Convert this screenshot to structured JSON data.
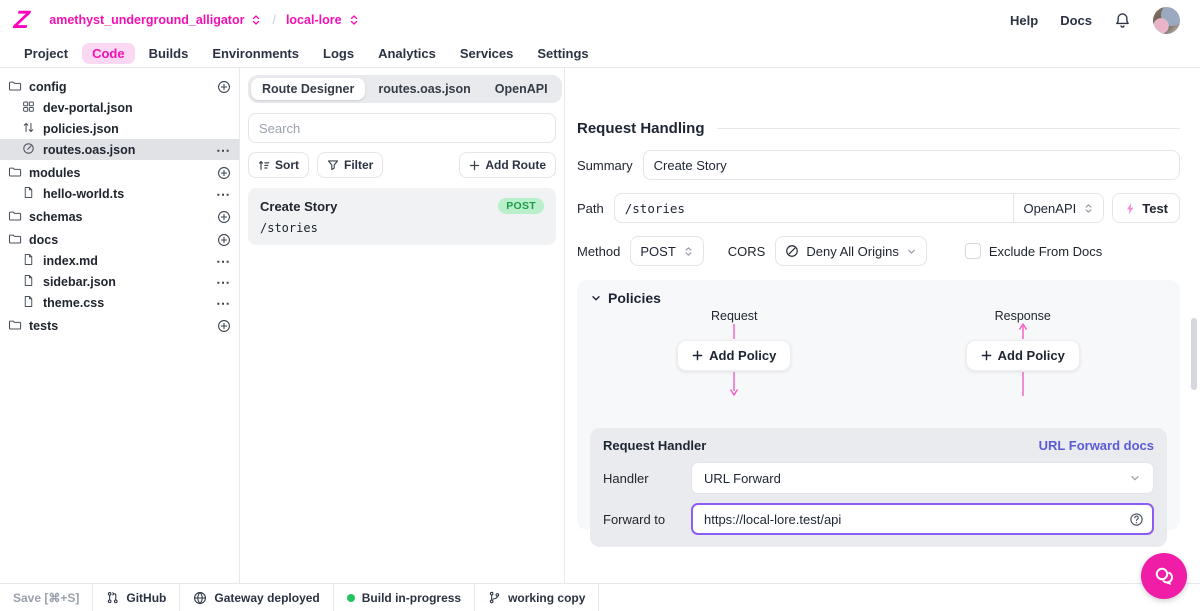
{
  "header": {
    "logo_text": "Z",
    "project_name": "amethyst_underground_alligator",
    "separator": "/",
    "environment_name": "local-lore",
    "help_label": "Help",
    "docs_label": "Docs"
  },
  "nav": {
    "tabs": [
      {
        "label": "Project",
        "active": false
      },
      {
        "label": "Code",
        "active": true
      },
      {
        "label": "Builds",
        "active": false
      },
      {
        "label": "Environments",
        "active": false
      },
      {
        "label": "Logs",
        "active": false
      },
      {
        "label": "Analytics",
        "active": false
      },
      {
        "label": "Services",
        "active": false
      },
      {
        "label": "Settings",
        "active": false
      }
    ]
  },
  "file_tree": {
    "items": [
      {
        "label": "config",
        "icon": "folder-icon",
        "depth": 0,
        "action": "plus",
        "selected": false
      },
      {
        "label": "dev-portal.json",
        "icon": "layout-grid-icon",
        "depth": 1,
        "action": "none",
        "selected": false
      },
      {
        "label": "policies.json",
        "icon": "sort-arrows-icon",
        "depth": 1,
        "action": "none",
        "selected": false
      },
      {
        "label": "routes.oas.json",
        "icon": "route-icon",
        "depth": 1,
        "action": "ellipsis",
        "selected": true
      },
      {
        "label": "modules",
        "icon": "folder-icon",
        "depth": 0,
        "action": "plus",
        "selected": false
      },
      {
        "label": "hello-world.ts",
        "icon": "file-icon",
        "depth": 1,
        "action": "ellipsis",
        "selected": false
      },
      {
        "label": "schemas",
        "icon": "folder-icon",
        "depth": 0,
        "action": "plus",
        "selected": false
      },
      {
        "label": "docs",
        "icon": "folder-icon",
        "depth": 0,
        "action": "plus",
        "selected": false
      },
      {
        "label": "index.md",
        "icon": "file-icon",
        "depth": 1,
        "action": "ellipsis",
        "selected": false
      },
      {
        "label": "sidebar.json",
        "icon": "file-icon",
        "depth": 1,
        "action": "ellipsis",
        "selected": false
      },
      {
        "label": "theme.css",
        "icon": "file-icon",
        "depth": 1,
        "action": "ellipsis",
        "selected": false
      },
      {
        "label": "tests",
        "icon": "folder-icon",
        "depth": 0,
        "action": "plus",
        "selected": false
      }
    ]
  },
  "route_panel": {
    "tabs": [
      {
        "label": "Route Designer",
        "active": true
      },
      {
        "label": "routes.oas.json",
        "active": false
      },
      {
        "label": "OpenAPI",
        "active": false
      }
    ],
    "search_placeholder": "Search",
    "sort_label": "Sort",
    "filter_label": "Filter",
    "add_route_label": "Add Route",
    "route": {
      "summary": "Create Story",
      "path": "/stories",
      "method": "POST"
    }
  },
  "request_handling": {
    "title": "Request Handling",
    "summary_label": "Summary",
    "summary_value": "Create Story",
    "path_label": "Path",
    "path_value": "/stories",
    "openapi_label": "OpenAPI",
    "test_label": "Test",
    "method_label": "Method",
    "method_value": "POST",
    "cors_label": "CORS",
    "cors_value": "Deny All Origins",
    "exclude_from_docs_label": "Exclude From Docs"
  },
  "policies": {
    "title": "Policies",
    "request_label": "Request",
    "response_label": "Response",
    "add_policy_label": "Add Policy"
  },
  "request_handler": {
    "title": "Request Handler",
    "docs_link_label": "URL Forward docs",
    "handler_label": "Handler",
    "handler_value": "URL Forward",
    "forward_to_label": "Forward to",
    "forward_to_value": "https://local-lore.test/api"
  },
  "status_bar": {
    "items": [
      {
        "label": "Save [⌘+S]",
        "icon": "none",
        "muted": true
      },
      {
        "label": "GitHub",
        "icon": "github-pull-request-icon",
        "muted": false
      },
      {
        "label": "Gateway deployed",
        "icon": "globe-icon",
        "muted": false
      },
      {
        "label": "Build in-progress",
        "icon": "green-dot",
        "muted": false
      },
      {
        "label": "working copy",
        "icon": "branch-icon",
        "muted": false
      }
    ]
  },
  "colors": {
    "brand_pink": "#FF00BD",
    "breadcrumb_pink": "#F311B6",
    "arrow_pink": "#F25CC4",
    "badge_green_bg": "#B9F0CB",
    "badge_green_text": "#1D9B4B",
    "link_indigo": "#5B5BD6",
    "focus_purple": "#8B5CF6",
    "build_green": "#23C45E",
    "chat_pink": "#F01EA6"
  }
}
